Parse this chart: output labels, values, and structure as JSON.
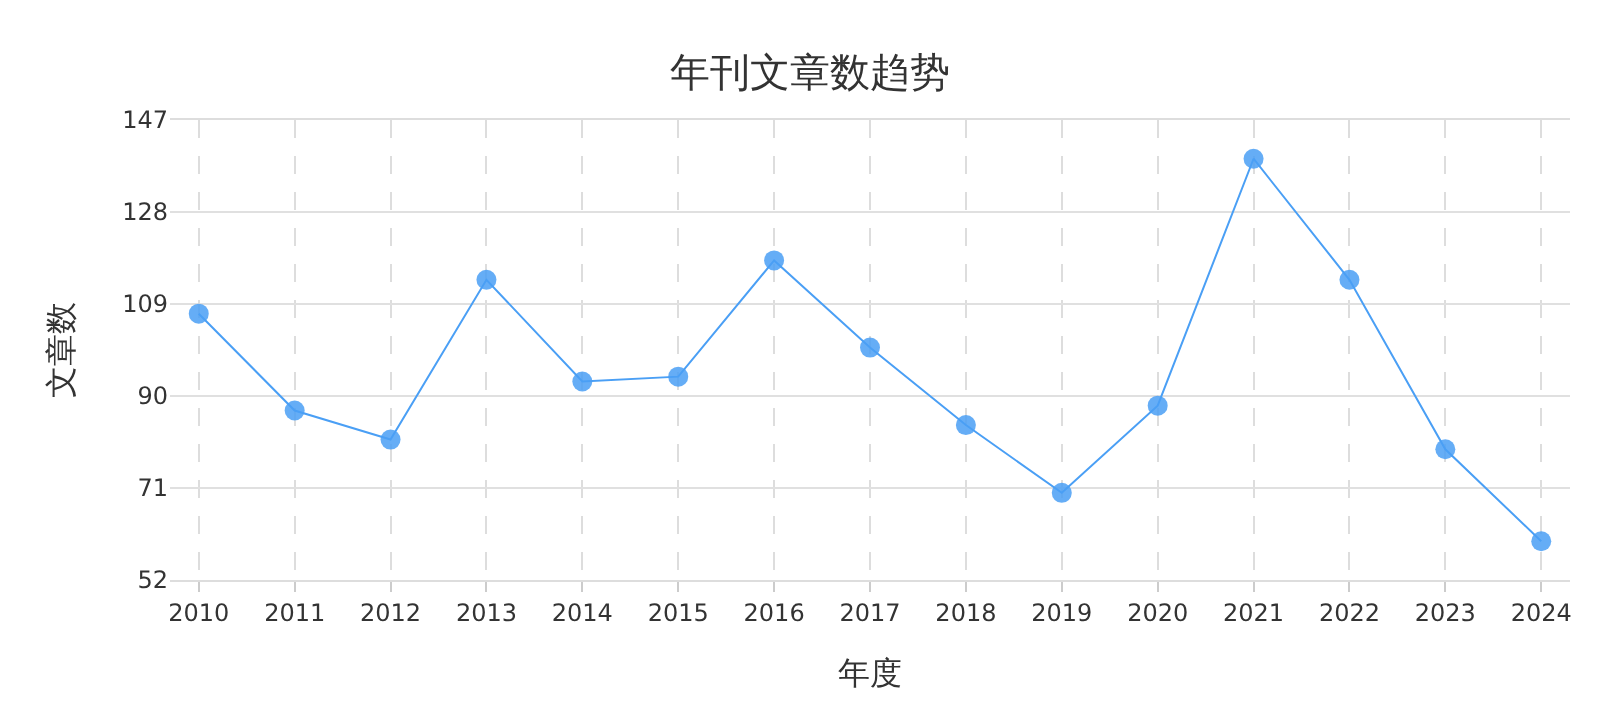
{
  "chart_data": {
    "type": "line",
    "title": "年刊文章数趋势",
    "xlabel": "年度",
    "ylabel": "文章数",
    "categories": [
      "2010",
      "2011",
      "2012",
      "2013",
      "2014",
      "2015",
      "2016",
      "2017",
      "2018",
      "2019",
      "2020",
      "2021",
      "2022",
      "2023",
      "2024"
    ],
    "series": [
      {
        "color": "#4a9ff5",
        "values": [
          107,
          87,
          81,
          114,
          93,
          94,
          118,
          100,
          84,
          70,
          88,
          139,
          114,
          79,
          60
        ]
      }
    ],
    "ylim": [
      52,
      147
    ],
    "yticks": [
      52,
      71,
      90,
      109,
      128,
      147
    ],
    "grid": true,
    "marker": "circle",
    "line_style": "solid"
  }
}
